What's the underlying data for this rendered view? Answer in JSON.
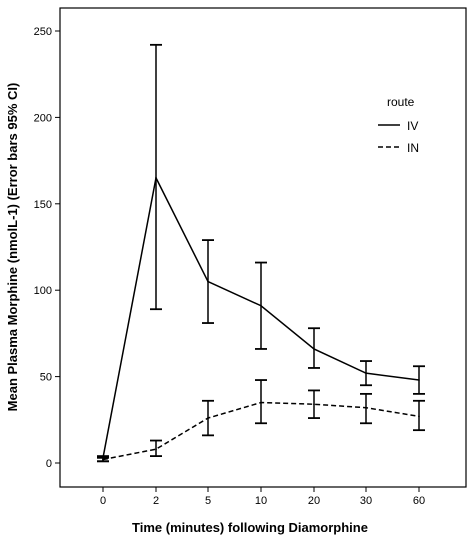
{
  "chart_data": {
    "type": "line",
    "categories": [
      "0",
      "2",
      "5",
      "10",
      "20",
      "30",
      "60"
    ],
    "xlabel": "Time (minutes) following Diamorphine",
    "ylabel": "Mean Plasma Morphine (nmolL-1) (Error bars 95% CI)",
    "ylim": [
      0,
      260
    ],
    "yticks": [
      0,
      50,
      100,
      150,
      200,
      250
    ],
    "legend": {
      "title": "route",
      "placement": "top-right"
    },
    "series": [
      {
        "name": "IV",
        "line_style": "solid",
        "values": [
          3,
          165,
          105,
          91,
          66,
          52,
          48
        ],
        "ci_low": [
          1,
          89,
          81,
          66,
          55,
          45,
          40
        ],
        "ci_high": [
          4,
          242,
          129,
          116,
          78,
          59,
          56
        ]
      },
      {
        "name": "IN",
        "line_style": "dashed",
        "values": [
          2,
          8,
          26,
          35,
          34,
          32,
          27
        ],
        "ci_low": [
          1,
          4,
          16,
          23,
          26,
          23,
          19
        ],
        "ci_high": [
          3,
          13,
          36,
          48,
          42,
          40,
          36
        ]
      }
    ]
  }
}
